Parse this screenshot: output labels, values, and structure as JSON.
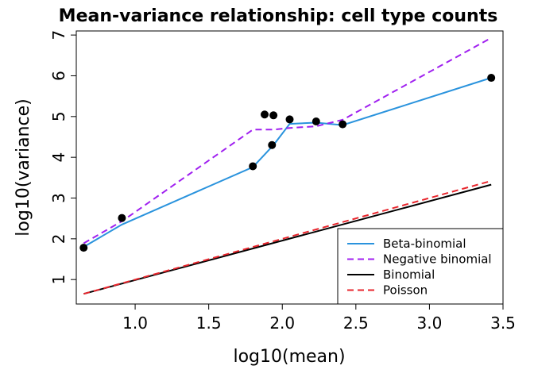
{
  "chart_data": {
    "type": "line",
    "title": "Mean-variance relationship: cell type counts",
    "xlabel": "log10(mean)",
    "ylabel": "log10(variance)",
    "xlim": [
      0.6,
      3.5
    ],
    "ylim": [
      0.4,
      7.1
    ],
    "x_ticks": [
      "1.0",
      "1.5",
      "2.0",
      "2.5",
      "3.0",
      "3.5"
    ],
    "y_ticks": [
      "1",
      "2",
      "3",
      "4",
      "5",
      "6",
      "7"
    ],
    "grid": false,
    "legend_position": "bottom-right",
    "points": {
      "x": [
        0.65,
        0.91,
        1.8,
        1.88,
        1.93,
        1.94,
        2.05,
        2.23,
        2.41,
        3.42
      ],
      "y": [
        1.78,
        2.51,
        3.78,
        5.05,
        4.3,
        5.03,
        4.93,
        4.88,
        4.81,
        5.95
      ]
    },
    "series": [
      {
        "name": "Beta-binomial",
        "color": "#2a93dd",
        "dash": "solid",
        "x": [
          0.65,
          0.91,
          1.8,
          1.94,
          2.05,
          2.23,
          2.41,
          3.42
        ],
        "y": [
          1.8,
          2.35,
          3.76,
          4.3,
          4.82,
          4.85,
          4.79,
          5.95
        ]
      },
      {
        "name": "Negative binomial",
        "color": "#a020f0",
        "dash": "dashed",
        "x": [
          0.65,
          0.91,
          1.8,
          1.94,
          2.05,
          2.23,
          2.41,
          3.42
        ],
        "y": [
          1.89,
          2.43,
          4.68,
          4.68,
          4.72,
          4.76,
          4.92,
          6.93
        ]
      },
      {
        "name": "Binomial",
        "color": "#000000",
        "dash": "solid",
        "x": [
          0.65,
          3.42
        ],
        "y": [
          0.65,
          3.33
        ]
      },
      {
        "name": "Poisson",
        "color": "#e8262d",
        "dash": "dashed",
        "x": [
          0.65,
          3.42
        ],
        "y": [
          0.65,
          3.42
        ]
      }
    ]
  }
}
